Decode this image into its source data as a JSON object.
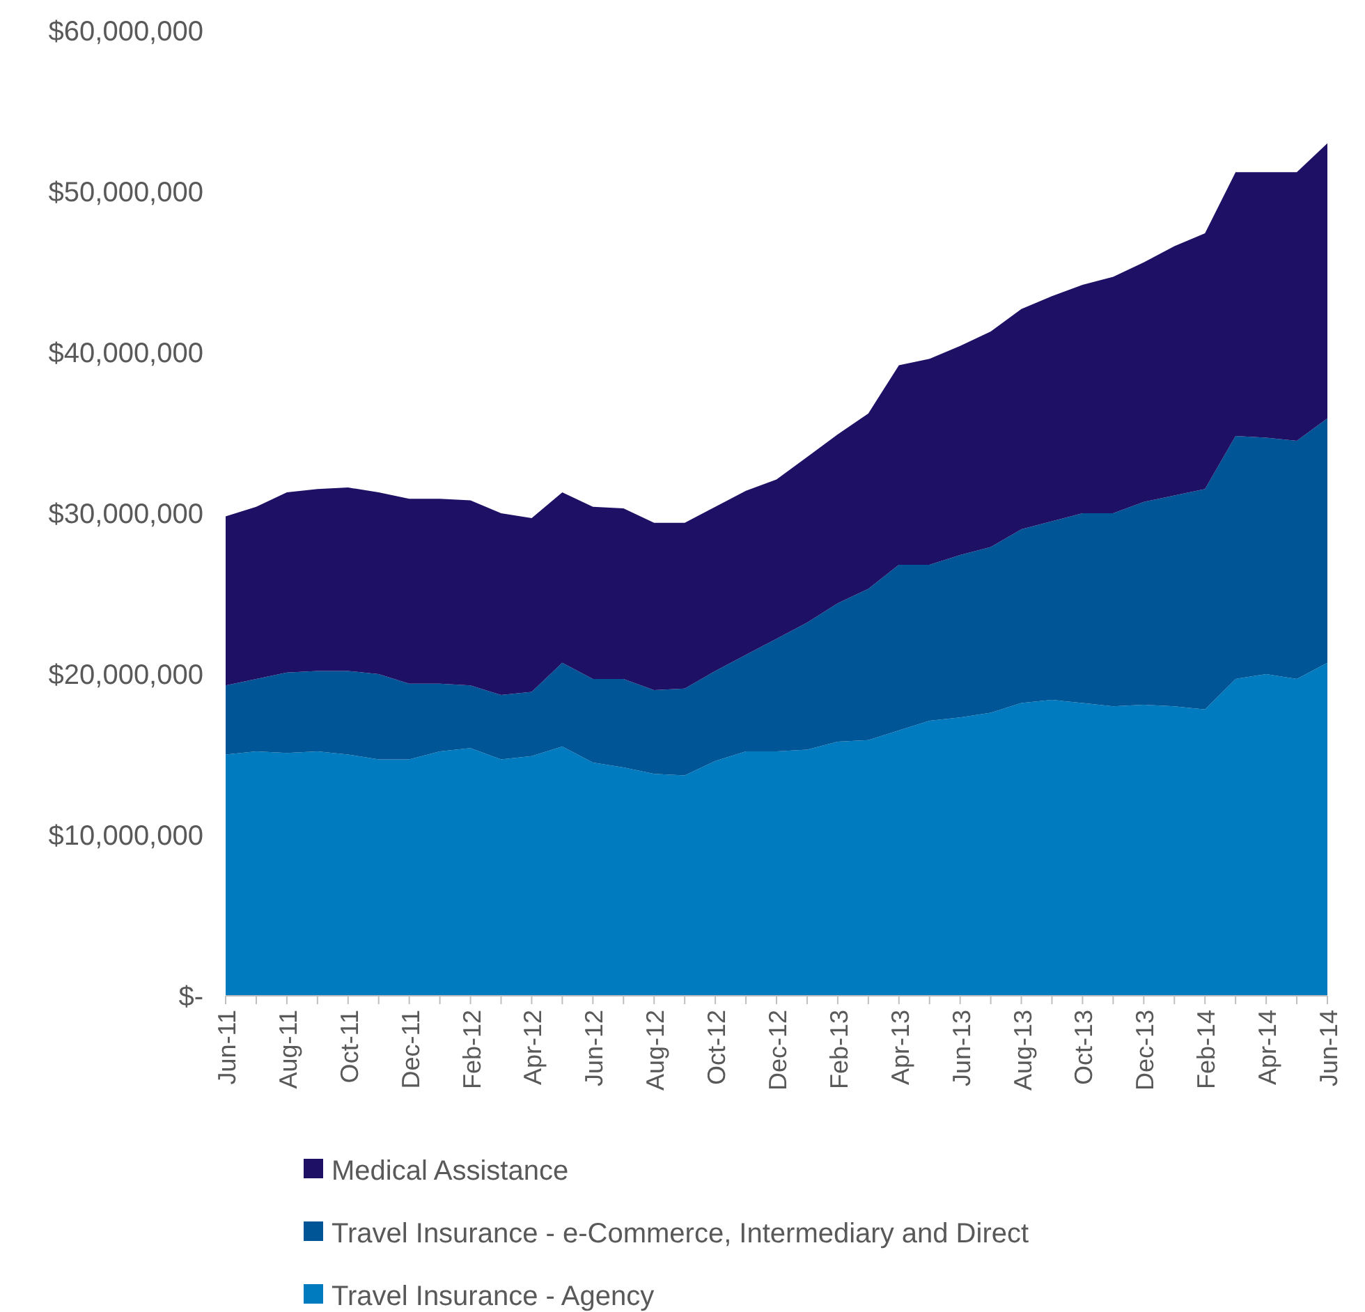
{
  "chart_data": {
    "type": "area",
    "stacked": true,
    "categories": [
      "Jun-11",
      null,
      "Aug-11",
      null,
      "Oct-11",
      null,
      "Dec-11",
      null,
      "Feb-12",
      null,
      "Apr-12",
      null,
      "Jun-12",
      null,
      "Aug-12",
      null,
      "Oct-12",
      null,
      "Dec-12",
      null,
      "Feb-13",
      null,
      "Apr-13",
      null,
      "Jun-13",
      null,
      "Aug-13",
      null,
      "Oct-13",
      null,
      "Dec-13",
      null,
      "Feb-14",
      null,
      "Apr-14",
      null,
      "Jun-14"
    ],
    "series": [
      {
        "name": "Travel Insurance - Agency",
        "color": "#007bbf",
        "values": [
          15000000,
          15200000,
          15100000,
          15200000,
          15000000,
          14700000,
          14700000,
          15200000,
          15400000,
          14700000,
          14900000,
          15500000,
          14500000,
          14200000,
          13800000,
          13700000,
          14600000,
          15200000,
          15200000,
          15300000,
          15800000,
          15900000,
          16500000,
          17100000,
          17300000,
          17600000,
          18200000,
          18400000,
          18200000,
          18000000,
          18100000,
          18000000,
          17800000,
          19700000,
          20000000,
          19700000,
          20700000
        ]
      },
      {
        "name": "Travel Insurance - e-Commerce, Intermediary and Direct",
        "color": "#005596",
        "values": [
          4300000,
          4500000,
          5000000,
          5000000,
          5200000,
          5300000,
          4700000,
          4200000,
          3900000,
          4000000,
          4000000,
          5200000,
          5200000,
          5500000,
          5200000,
          5400000,
          5600000,
          6000000,
          7000000,
          7900000,
          8600000,
          9400000,
          10300000,
          9700000,
          10100000,
          10300000,
          10800000,
          11100000,
          11800000,
          12000000,
          12600000,
          13100000,
          13700000,
          15100000,
          14700000,
          14800000,
          15200000
        ]
      },
      {
        "name": "Medical Assistance",
        "color": "#1e1064",
        "values": [
          10500000,
          10700000,
          11200000,
          11300000,
          11400000,
          11300000,
          11500000,
          11500000,
          11500000,
          11300000,
          10800000,
          10600000,
          10700000,
          10600000,
          10400000,
          10300000,
          10200000,
          10200000,
          9900000,
          10300000,
          10500000,
          10900000,
          12400000,
          12800000,
          13000000,
          13400000,
          13700000,
          14000000,
          14200000,
          14700000,
          14900000,
          15500000,
          15900000,
          16400000,
          16500000,
          16700000,
          17100000
        ]
      }
    ],
    "ylim": [
      0,
      60000000
    ],
    "yticks": [
      {
        "value": 0,
        "label": "$-"
      },
      {
        "value": 10000000,
        "label": "$10,000,000"
      },
      {
        "value": 20000000,
        "label": "$20,000,000"
      },
      {
        "value": 30000000,
        "label": "$30,000,000"
      },
      {
        "value": 40000000,
        "label": "$40,000,000"
      },
      {
        "value": 50000000,
        "label": "$50,000,000"
      },
      {
        "value": 60000000,
        "label": "$60,000,000"
      }
    ],
    "grid": false,
    "legend": "bottom"
  }
}
